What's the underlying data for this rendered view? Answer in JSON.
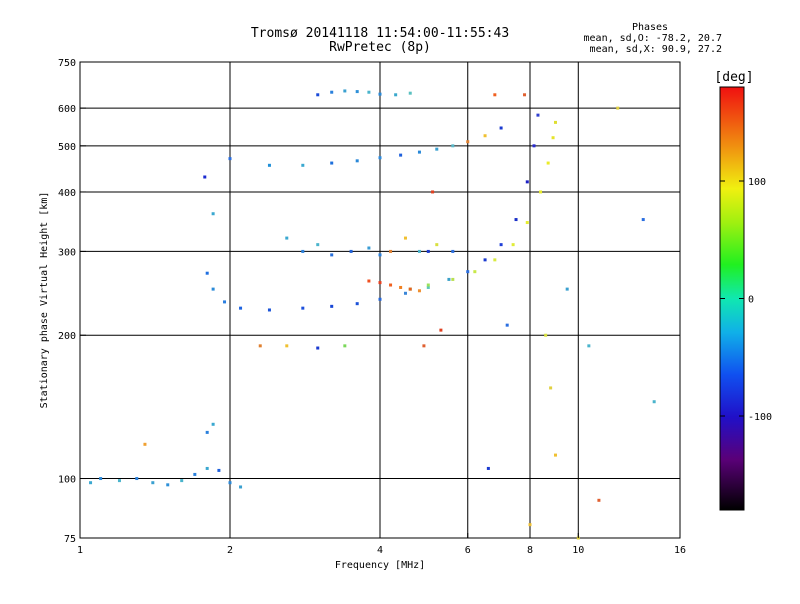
{
  "header": {
    "title_line1": "Tromsø 20141118 11:54:00-11:55:43",
    "title_line2": "RwPretec (8p)",
    "stats_heading": "Phases",
    "stats_line1": "mean, sd,O: -78.2, 20.7",
    "stats_line2": "mean, sd,X:  90.9, 27.2"
  },
  "colorbar": {
    "label": "[deg]",
    "ticks": [
      "100",
      "0",
      "-100"
    ],
    "tick_values": [
      100,
      0,
      -100
    ],
    "range": [
      -180,
      180
    ],
    "colormap": "rainbow (black-violet-blue-cyan-green-yellow-red)"
  },
  "chart_data": {
    "type": "scatter",
    "xlabel": "Frequency [MHz]",
    "ylabel": "Stationary phase Virtual Height [km]",
    "x_scale": "log",
    "y_scale": "log",
    "xlim": [
      1,
      16
    ],
    "ylim": [
      75,
      750
    ],
    "x_ticks": [
      1,
      2,
      4,
      6,
      8,
      10,
      16
    ],
    "x_tick_labels": [
      "1",
      "2",
      "4",
      "6",
      "8",
      "10",
      "16"
    ],
    "y_ticks": [
      75,
      100,
      200,
      300,
      400,
      500,
      600,
      750
    ],
    "y_tick_labels": [
      "75",
      "100",
      "200",
      "300",
      "400",
      "500",
      "600",
      "750"
    ],
    "grid": true,
    "series": [
      {
        "points": [
          [
            1.8,
            270
          ],
          [
            1.85,
            250
          ],
          [
            1.95,
            235
          ],
          [
            2.1,
            228
          ],
          [
            2.4,
            226
          ],
          [
            2.8,
            228
          ],
          [
            3.2,
            230
          ],
          [
            3.6,
            233
          ],
          [
            4.0,
            238
          ],
          [
            4.5,
            245
          ],
          [
            5.0,
            252
          ],
          [
            5.5,
            262
          ],
          [
            6.0,
            272
          ],
          [
            6.5,
            288
          ],
          [
            7.0,
            310
          ],
          [
            7.5,
            350
          ],
          [
            7.9,
            420
          ],
          [
            8.15,
            500
          ],
          [
            8.3,
            580
          ]
        ],
        "colors": [
          "#1f6fe0",
          "#2a8ad8",
          "#2a7ee0",
          "#1e64e0",
          "#1c55d8",
          "#1d50dc",
          "#1646d6",
          "#1c52d8",
          "#2668dc",
          "#3a86d8",
          "#5ec8b8",
          "#3aa0c8",
          "#2a6ee0",
          "#1a3ad0",
          "#2040d8",
          "#1a30c8",
          "#1d20c4",
          "#2a2cd0",
          "#3040d0"
        ]
      },
      {
        "points": [
          [
            4.6,
            250
          ],
          [
            5.0,
            255
          ],
          [
            5.6,
            262
          ],
          [
            6.2,
            272
          ],
          [
            6.8,
            288
          ],
          [
            7.4,
            310
          ],
          [
            7.9,
            345
          ],
          [
            8.4,
            400
          ],
          [
            8.7,
            460
          ],
          [
            8.9,
            520
          ],
          [
            9.0,
            560
          ]
        ],
        "colors": [
          "#6ee05a",
          "#9ae25a",
          "#b8e050",
          "#c8e848",
          "#d8ea40",
          "#e0ec38",
          "#e6ee30",
          "#e8ec2a",
          "#eaec28",
          "#e6e42a",
          "#dede30"
        ]
      },
      {
        "points": [
          [
            2.4,
            455
          ],
          [
            2.8,
            455
          ],
          [
            3.2,
            460
          ],
          [
            3.6,
            465
          ],
          [
            4.0,
            472
          ],
          [
            4.4,
            478
          ],
          [
            4.8,
            485
          ],
          [
            5.2,
            492
          ],
          [
            5.6,
            500
          ],
          [
            6.0,
            510
          ],
          [
            6.5,
            525
          ],
          [
            7.0,
            545
          ]
        ],
        "colors": [
          "#2090d8",
          "#3aa8d0",
          "#1e70dc",
          "#2a88d8",
          "#2e8ce0",
          "#1e60dc",
          "#2888d8",
          "#3aa0d0",
          "#5ab8c8",
          "#e08030",
          "#f0c030",
          "#1a3ad0"
        ]
      },
      {
        "points": [
          [
            3.0,
            640
          ],
          [
            3.2,
            648
          ],
          [
            3.4,
            652
          ],
          [
            3.6,
            650
          ],
          [
            3.8,
            648
          ],
          [
            4.0,
            642
          ],
          [
            4.3,
            640
          ],
          [
            4.6,
            645
          ]
        ],
        "colors": [
          "#1a4ad8",
          "#2a80dc",
          "#3aa0d0",
          "#2e90d8",
          "#4ab4cc",
          "#2888d8",
          "#3aa8cc",
          "#5ac0c0"
        ]
      },
      {
        "points": [
          [
            2.6,
            320
          ],
          [
            2.8,
            300
          ],
          [
            3.0,
            310
          ],
          [
            3.2,
            295
          ],
          [
            3.5,
            300
          ],
          [
            3.8,
            305
          ],
          [
            4.0,
            295
          ],
          [
            4.2,
            300
          ],
          [
            4.5,
            320
          ],
          [
            4.8,
            300
          ],
          [
            5.2,
            310
          ],
          [
            5.6,
            300
          ]
        ],
        "colors": [
          "#3aa8d0",
          "#2a80dc",
          "#4ab4cc",
          "#2870dc",
          "#1e60d8",
          "#3a9cd4",
          "#2a80dc",
          "#e08030",
          "#f0c030",
          "#4ab4cc",
          "#d8e040",
          "#2a6ee0"
        ]
      },
      {
        "points": [
          [
            3.8,
            260
          ],
          [
            4.0,
            258
          ],
          [
            4.2,
            255
          ],
          [
            4.4,
            252
          ],
          [
            4.6,
            250
          ],
          [
            4.8,
            248
          ]
        ],
        "colors": [
          "#f05020",
          "#e84020",
          "#f06020",
          "#f08020",
          "#e86020",
          "#f09030"
        ]
      },
      {
        "points": [
          [
            1.05,
            98
          ],
          [
            1.1,
            100
          ],
          [
            1.2,
            99
          ],
          [
            1.3,
            100
          ],
          [
            1.4,
            98
          ],
          [
            1.5,
            97
          ],
          [
            1.6,
            99
          ],
          [
            1.7,
            102
          ],
          [
            1.8,
            105
          ],
          [
            1.9,
            104
          ],
          [
            2.0,
            98
          ],
          [
            2.1,
            96
          ],
          [
            1.35,
            118
          ],
          [
            1.8,
            125
          ],
          [
            1.85,
            130
          ]
        ],
        "colors": [
          "#3aa8d0",
          "#2a88d8",
          "#4ab4cc",
          "#2a80dc",
          "#3aa0d0",
          "#2e90d8",
          "#4ab4cc",
          "#2a80dc",
          "#3aa8d0",
          "#1e60dc",
          "#2a88d8",
          "#3aa0d0",
          "#f0a030",
          "#2a80dc",
          "#3aa8d0"
        ]
      },
      {
        "points": [
          [
            1.78,
            430
          ],
          [
            1.85,
            360
          ],
          [
            2.0,
            470
          ],
          [
            2.3,
            190
          ],
          [
            2.6,
            190
          ],
          [
            3.0,
            188
          ],
          [
            3.4,
            190
          ],
          [
            4.9,
            190
          ],
          [
            5.0,
            300
          ],
          [
            5.3,
            205
          ],
          [
            6.6,
            105
          ],
          [
            7.2,
            210
          ],
          [
            8.6,
            200
          ],
          [
            8.8,
            155
          ],
          [
            9.0,
            112
          ],
          [
            10.5,
            190
          ],
          [
            11.0,
            90
          ],
          [
            12.0,
            600
          ],
          [
            13.5,
            350
          ],
          [
            14.2,
            145
          ],
          [
            8.0,
            80
          ],
          [
            10.0,
            75
          ],
          [
            5.1,
            400
          ],
          [
            6.8,
            640
          ],
          [
            7.8,
            640
          ],
          [
            9.5,
            250
          ]
        ],
        "colors": [
          "#1a2ad0",
          "#3aa8d0",
          "#2a6ee0",
          "#e08030",
          "#f0c030",
          "#1a3ad0",
          "#7ad85a",
          "#e06030",
          "#1a3ad0",
          "#e04020",
          "#1a3ad0",
          "#2a6ee0",
          "#d8e040",
          "#e0d040",
          "#f0c030",
          "#4ab4cc",
          "#e06030",
          "#e0d040",
          "#2a6ee0",
          "#4ab4cc",
          "#f0c030",
          "#e0d040",
          "#e04020",
          "#f06020",
          "#e06030",
          "#3aa0d0"
        ]
      }
    ]
  }
}
